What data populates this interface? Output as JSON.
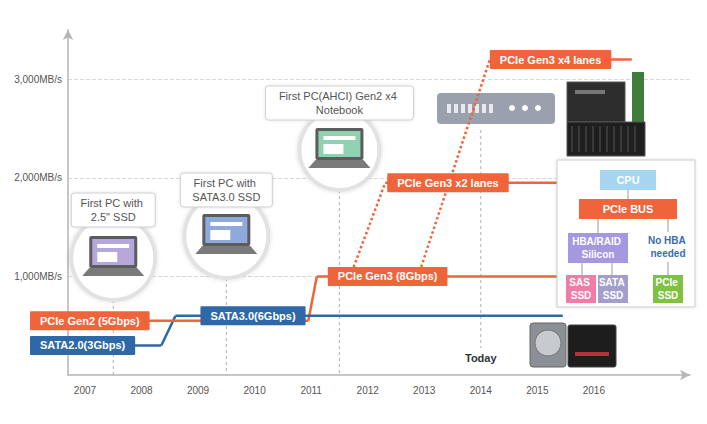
{
  "chart_data": {
    "type": "line",
    "xlim": [
      2006.7,
      2017.7
    ],
    "xticks": [
      2007,
      2008,
      2009,
      2010,
      2011,
      2012,
      2013,
      2014,
      2015,
      2016
    ],
    "ylim": [
      0,
      3500
    ],
    "yticks": [
      {
        "value": 1000,
        "label": "1,000MB/s"
      },
      {
        "value": 2000,
        "label": "2,000MB/s"
      },
      {
        "value": 3000,
        "label": "3,000MB/s"
      }
    ],
    "grid": true,
    "series": [
      {
        "name": "PCIe Gen2 (5Gbps)",
        "color": "#f0643c",
        "x": [
          2006.7,
          2010.95
        ],
        "values": [
          550,
          550
        ]
      },
      {
        "name": "SATA2.0(3Gbps)",
        "color": "#2f68a6",
        "x": [
          2006.7,
          2008.35
        ],
        "values": [
          300,
          300
        ]
      },
      {
        "name": "SATA3.0(6Gbps)",
        "color": "#2f68a6",
        "x": [
          2008.35,
          2008.6,
          2015.45
        ],
        "values": [
          300,
          600,
          600
        ]
      },
      {
        "name": "PCIe Gen3 (8Gbps)",
        "color": "#f0643c",
        "x": [
          2010.95,
          2011.1,
          2015.6
        ],
        "values": [
          550,
          1000,
          1000
        ]
      },
      {
        "name": "PCIe Gen3 x2 lanes",
        "color": "#f0643c",
        "line_style": "dotted",
        "x": [
          2011.69,
          2012.31,
          2015.4
        ],
        "values": [
          1000,
          1950,
          1950
        ]
      },
      {
        "name": "PCIe Gen3 x4 lanes",
        "color": "#f0643c",
        "line_style": "dotted",
        "x": [
          2012.89,
          2014.16,
          2016.67
        ],
        "values": [
          1000,
          3200,
          3200
        ]
      }
    ],
    "annotations": [
      {
        "text": "First PC with 2.5\" SSD",
        "x": 2007.5
      },
      {
        "text": "First PC with SATA3.0 SSD",
        "x": 2009.5
      },
      {
        "text": "First PC(AHCI) Gen2 x4 Notebook",
        "x": 2011.5
      },
      {
        "text": "Today",
        "x": 2014
      }
    ],
    "diagram": {
      "cpu": "CPU",
      "bus": "PCIe BUS",
      "hba": "HBA/RAID Silicon",
      "no_hba": "No HBA needed",
      "ssds": [
        "SAS SSD",
        "SATA SSD",
        "PCIe SSD"
      ]
    }
  }
}
